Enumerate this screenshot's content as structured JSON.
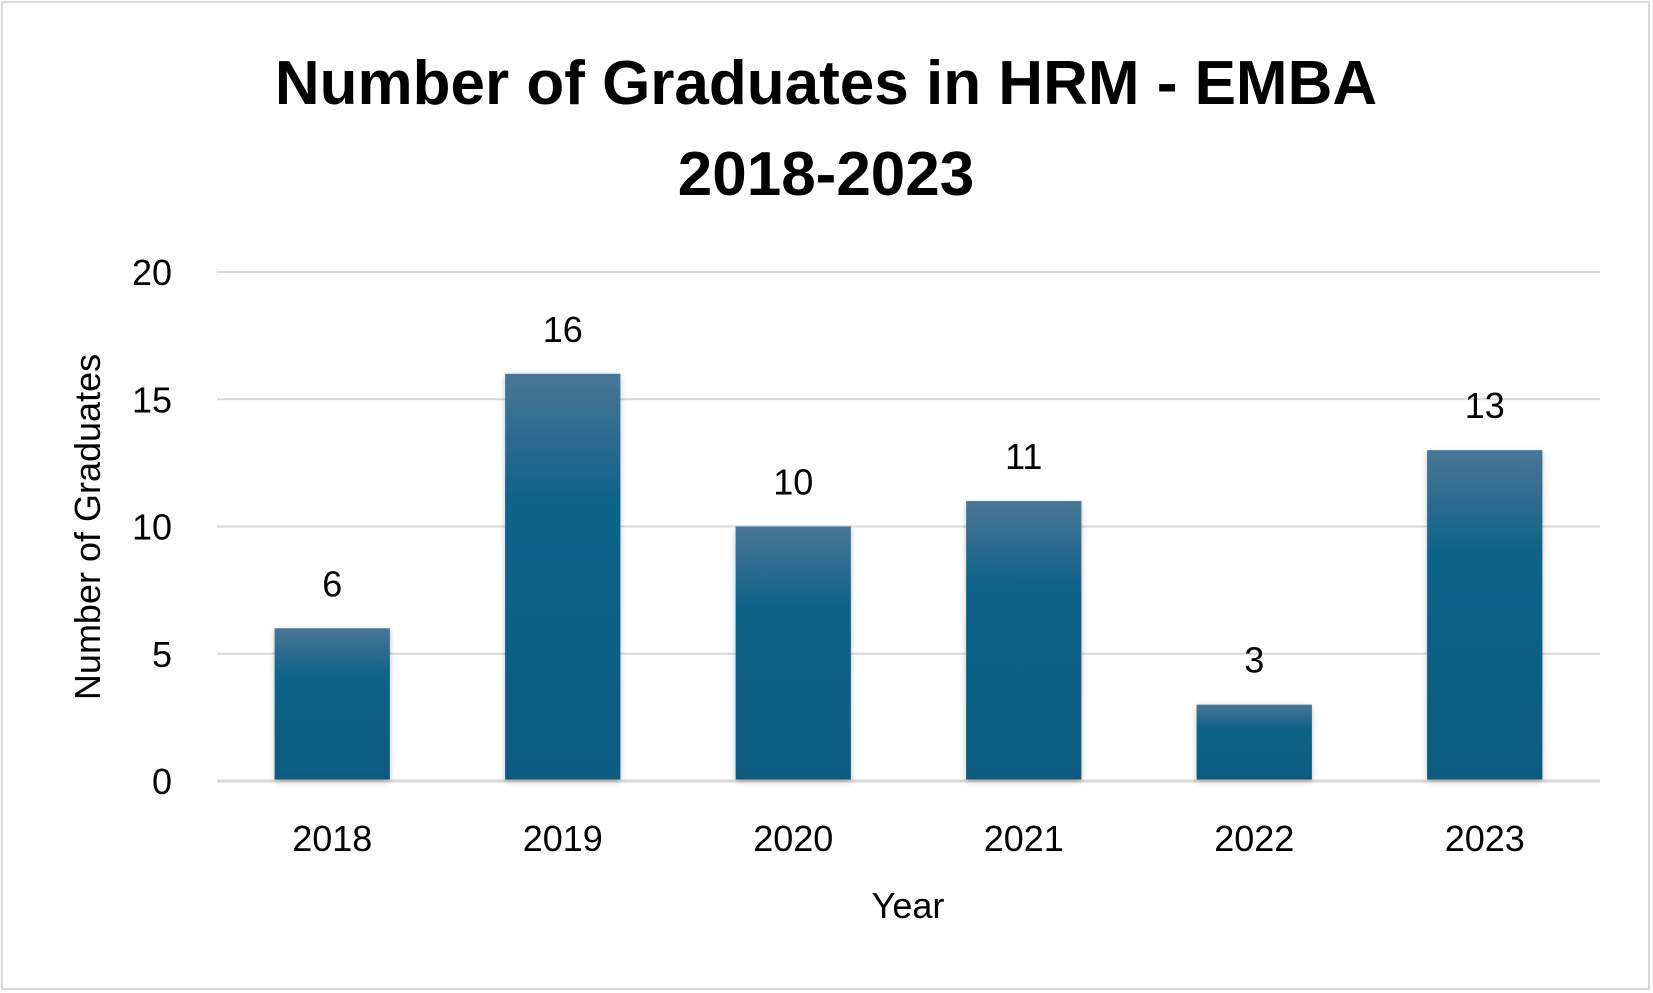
{
  "chart_data": {
    "type": "bar",
    "title_lines": [
      "Number of Graduates in HRM - EMBA",
      "2018-2023"
    ],
    "xlabel": "Year",
    "ylabel": "Number of Graduates",
    "categories": [
      "2018",
      "2019",
      "2020",
      "2021",
      "2022",
      "2023"
    ],
    "values": [
      6,
      16,
      10,
      11,
      3,
      13
    ],
    "data_labels": [
      "6",
      "16",
      "10",
      "11",
      "3",
      "13"
    ],
    "ylim": [
      0,
      20
    ],
    "yticks": [
      0,
      5,
      10,
      15,
      20
    ],
    "ytick_labels": [
      "0",
      "5",
      "10",
      "15",
      "20"
    ],
    "grid": true,
    "legend": "none",
    "colors": {
      "bar_top": "#4a7595",
      "bar_bottom": "#0d5a80",
      "grid": "#d9d9d9",
      "baseline": "#d9d9d9"
    }
  }
}
